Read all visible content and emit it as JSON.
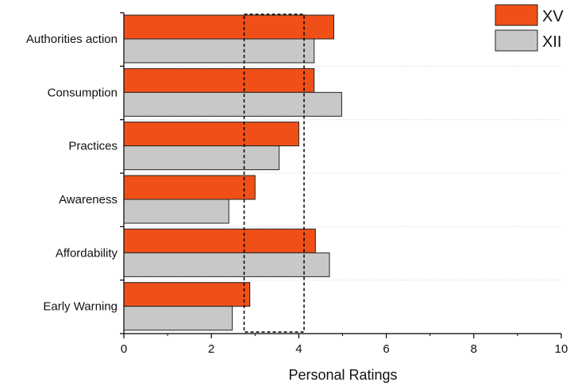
{
  "chart_data": {
    "type": "bar",
    "orientation": "horizontal",
    "categories": [
      "Authorities action",
      "Consumption",
      "Practices",
      "Awareness",
      "Affordability",
      "Early Warning"
    ],
    "series": [
      {
        "name": "XV",
        "color": "#f05018",
        "values": [
          4.8,
          4.35,
          4.0,
          3.0,
          4.38,
          2.88
        ]
      },
      {
        "name": "XII",
        "color": "#c8c8c8",
        "values": [
          4.35,
          4.98,
          3.55,
          2.4,
          4.7,
          2.48
        ]
      }
    ],
    "xlabel": "Personal Ratings",
    "ylabel": "",
    "xlim": [
      0,
      10
    ],
    "xticks": [
      "0",
      "2",
      "4",
      "6",
      "8",
      "10"
    ],
    "grid": "horizontal dotted lines between categories",
    "legend_position": "top-right",
    "annotation": {
      "type": "dashed-rectangle",
      "x_range": [
        2.75,
        4.12
      ]
    }
  }
}
